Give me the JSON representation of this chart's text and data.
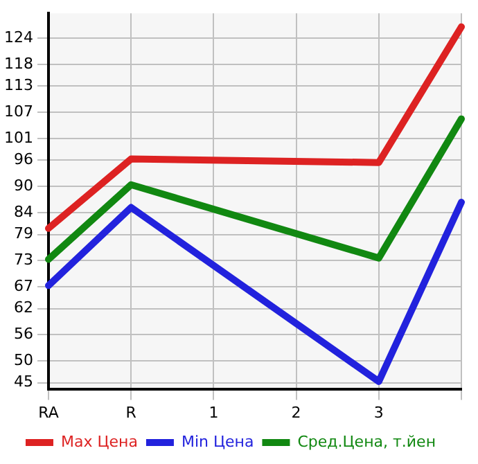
{
  "chart_data": {
    "type": "line",
    "categories": [
      "RA",
      "R",
      "1",
      "2",
      "3",
      null
    ],
    "series": [
      {
        "name": "Max Цена",
        "color": "#dd2222",
        "values": [
          80.4,
          96.3,
          null,
          null,
          95.5,
          126.6
        ]
      },
      {
        "name": "Min Цена",
        "color": "#2222dd",
        "values": [
          67.3,
          85.2,
          null,
          null,
          45.3,
          86.4
        ]
      },
      {
        "name": "Сред.Цена, т.йен",
        "color": "#118811",
        "values": [
          73.3,
          90.4,
          null,
          null,
          73.6,
          105.5
        ]
      }
    ],
    "ylim": [
      43.6,
      129.7
    ],
    "yticks": [
      45,
      50,
      56,
      62,
      67,
      73,
      79,
      84,
      90,
      96,
      101,
      107,
      113,
      118,
      124
    ],
    "grid": true,
    "legend": "bottom",
    "marker": "none",
    "line_style": "solid"
  }
}
